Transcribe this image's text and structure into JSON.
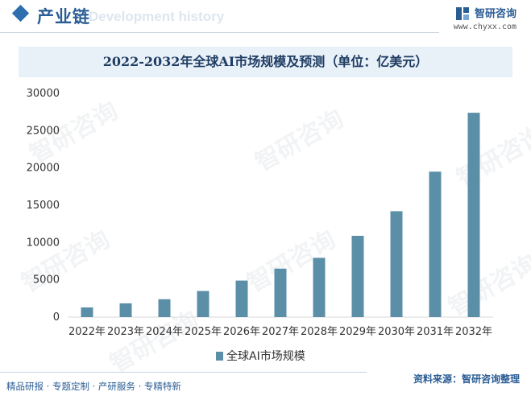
{
  "header": {
    "section_title": "产业链",
    "ghost_title": "Development history",
    "brand_name": "智研咨询",
    "brand_url": "www.chyxx.com"
  },
  "chart_title": "2022-2032年全球AI市场规模及预测（单位：亿美元）",
  "watermark_text": "智研咨询",
  "footer": {
    "left": "精品研报 · 专题定制 · 产研服务 · 专精特新",
    "source": "资料来源：智研咨询整理"
  },
  "colors": {
    "bar": "#5b8fa8",
    "brand": "#2b5d95",
    "title_bg": "#e8f0f8"
  },
  "chart_data": {
    "type": "bar",
    "title": "2022-2032年全球AI市场规模及预测（单位：亿美元）",
    "categories": [
      "2022年",
      "2023年",
      "2024年",
      "2025年",
      "2026年",
      "2027年",
      "2028年",
      "2029年",
      "2030年",
      "2031年",
      "2032年"
    ],
    "series": [
      {
        "name": "全球AI市场规模",
        "values": [
          1300,
          1850,
          2400,
          3500,
          4900,
          6500,
          7950,
          10900,
          14200,
          19500,
          27400
        ]
      }
    ],
    "xlabel": "",
    "ylabel": "",
    "ylim": [
      0,
      30000
    ],
    "yticks": [
      0,
      5000,
      10000,
      15000,
      20000,
      25000,
      30000
    ],
    "grid": false,
    "legend": "bottom-center"
  }
}
